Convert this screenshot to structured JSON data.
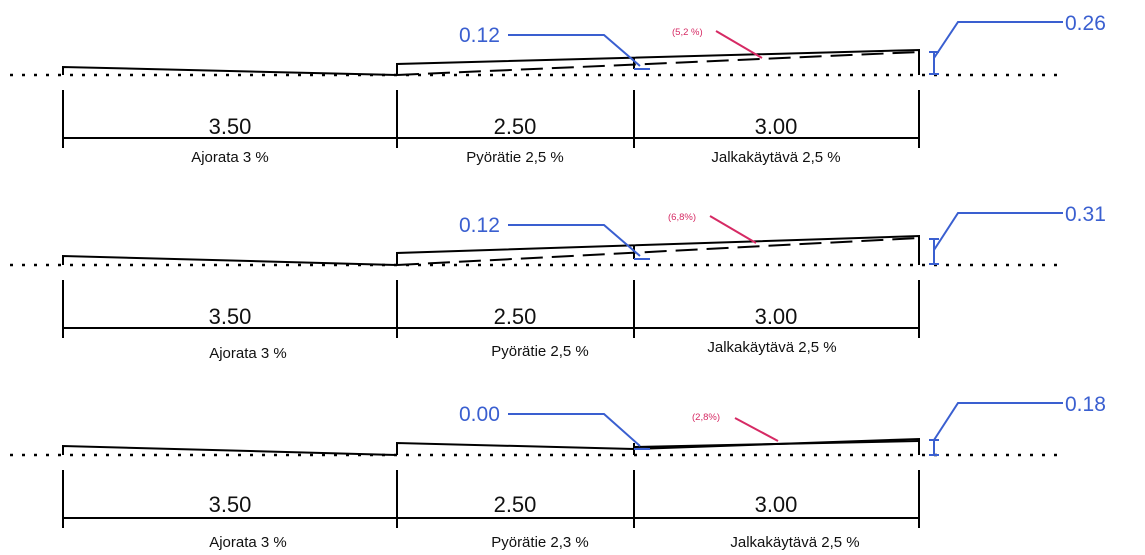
{
  "sections": [
    {
      "widths": [
        "3.50",
        "2.50",
        "3.00"
      ],
      "labels": [
        "Ajorata 3 %",
        "Pyörätie 2,5 %",
        "Jalkakäytävä 2,5 %"
      ],
      "callout_left": "0.12",
      "callout_right": "0.26",
      "slope_label": "(5,2 %)"
    },
    {
      "widths": [
        "3.50",
        "2.50",
        "3.00"
      ],
      "labels": [
        "Ajorata 3 %",
        "Pyörätie 2,5 %",
        "Jalkakäytävä 2,5 %"
      ],
      "callout_left": "0.12",
      "callout_right": "0.31",
      "slope_label": "(6,8%)"
    },
    {
      "widths": [
        "3.50",
        "2.50",
        "3.00"
      ],
      "labels": [
        "Ajorata 3 %",
        "Pyörätie 2,3 %",
        "Jalkakäytävä 2,5 %"
      ],
      "callout_left": "0.00",
      "callout_right": "0.18",
      "slope_label": "(2,8%)"
    }
  ],
  "colors": {
    "line": "#000000",
    "callout": "#3a5fd0",
    "slope": "#d62a64"
  }
}
